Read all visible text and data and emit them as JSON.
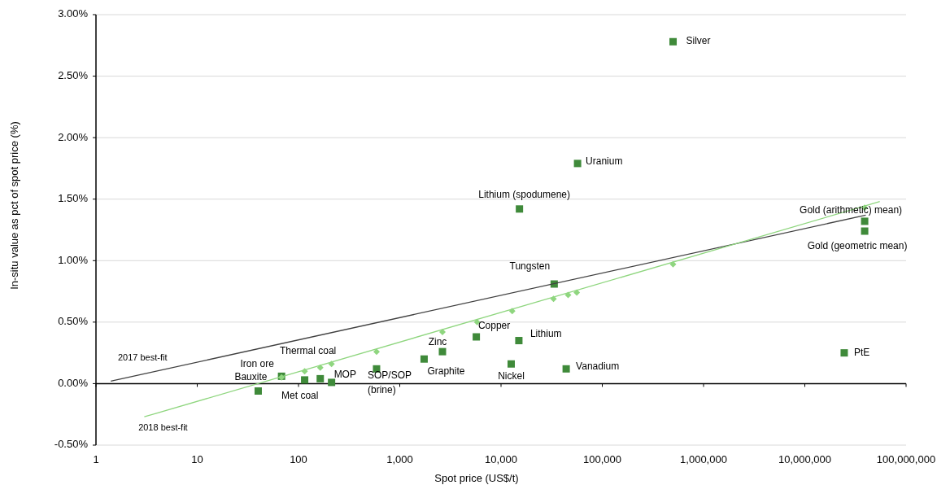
{
  "chart_data": {
    "type": "scatter",
    "xlabel": "Spot price (US$/t)",
    "ylabel": "In-situ value as pct of spot price (%)",
    "log": "x",
    "grid": "y",
    "xlim": [
      1,
      100000000
    ],
    "xticks": [
      1,
      10,
      100,
      {
        "value": 1000,
        "label": "1,000"
      },
      {
        "value": 10000,
        "label": "10,000"
      },
      {
        "value": 100000,
        "label": "100,000"
      },
      {
        "value": 1000000,
        "label": "1,000,000"
      },
      {
        "value": 10000000,
        "label": "10,000,000"
      },
      {
        "value": 100000000,
        "label": "100,000,000"
      }
    ],
    "ylim": [
      -0.5,
      3
    ],
    "yticks": [
      {
        "value": -0.5,
        "label": "-0.50%"
      },
      {
        "value": 0,
        "label": "0.00%"
      },
      {
        "value": 0.5,
        "label": "0.50%"
      },
      {
        "value": 1,
        "label": "1.00%"
      },
      {
        "value": 1.5,
        "label": "1.50%"
      },
      {
        "value": 2,
        "label": "2.00%"
      },
      {
        "value": 2.5,
        "label": "2.50%"
      },
      {
        "value": 3,
        "label": "3.00%"
      }
    ],
    "series": [
      {
        "marker": "square",
        "color": "#3f8a3a",
        "x": [
          40,
          68,
          115,
          164,
          212,
          590,
          1740,
          2640,
          5700,
          12600,
          15000,
          44000,
          24500000,
          500000,
          57000,
          15200,
          33500,
          39000000,
          39000000
        ],
        "values": [
          -0.06,
          0.06,
          0.03,
          0.04,
          0.01,
          0.12,
          0.2,
          0.26,
          0.38,
          0.16,
          0.35,
          0.12,
          0.25,
          2.78,
          1.79,
          1.42,
          0.81,
          1.32,
          1.24
        ]
      },
      {
        "type": "line",
        "name": "2017 best-fit",
        "color": "#404040",
        "x": [
          1.4,
          40000000
        ],
        "values": [
          0.02,
          1.37
        ]
      },
      {
        "type": "line",
        "name": "2018 best-fit",
        "color": "#8fd67f",
        "x": [
          3,
          55000000
        ],
        "values": [
          -0.27,
          1.48
        ]
      },
      {
        "type": "scatter",
        "marker": "diamond",
        "color": "#8fd67f",
        "x": [
          68,
          115,
          164,
          212,
          590,
          2640,
          5800,
          12900,
          33000,
          46000,
          56000,
          500000,
          39000000
        ],
        "values": [
          0.05,
          0.1,
          0.13,
          0.16,
          0.26,
          0.42,
          0.5,
          0.59,
          0.69,
          0.72,
          0.74,
          0.97,
          1.43
        ]
      }
    ],
    "annotations": [
      {
        "text": "Bauxite",
        "x": 40,
        "y": -0.06
      },
      {
        "text": "Iron ore",
        "x": 68,
        "y": 0.06
      },
      {
        "text": "Thermal coal",
        "x": 115,
        "y": 0.03
      },
      {
        "text": "Met coal",
        "x": 164,
        "y": 0.04
      },
      {
        "text": "MOP",
        "x": 212,
        "y": 0.01
      },
      {
        "text": "SOP/SOP\n(brine)",
        "x": 590,
        "y": 0.12
      },
      {
        "text": "Graphite",
        "x": 1740,
        "y": 0.2
      },
      {
        "text": "Zinc",
        "x": 2640,
        "y": 0.26
      },
      {
        "text": "Copper",
        "x": 5700,
        "y": 0.38
      },
      {
        "text": "Nickel",
        "x": 12600,
        "y": 0.16
      },
      {
        "text": "Lithium",
        "x": 15000,
        "y": 0.35
      },
      {
        "text": "Vanadium",
        "x": 44000,
        "y": 0.12
      },
      {
        "text": "PtE",
        "x": 24500000,
        "y": 0.25
      },
      {
        "text": "Silver",
        "x": 500000,
        "y": 2.78
      },
      {
        "text": "Uranium",
        "x": 57000,
        "y": 1.79
      },
      {
        "text": "Lithium (spodumene)",
        "x": 15200,
        "y": 1.42
      },
      {
        "text": "Tungsten",
        "x": 33500,
        "y": 0.81
      },
      {
        "text": "Gold (arithmetic) mean)",
        "x": 39000000,
        "y": 1.32
      },
      {
        "text": "Gold (geometric mean)",
        "x": 39000000,
        "y": 1.24
      }
    ]
  }
}
